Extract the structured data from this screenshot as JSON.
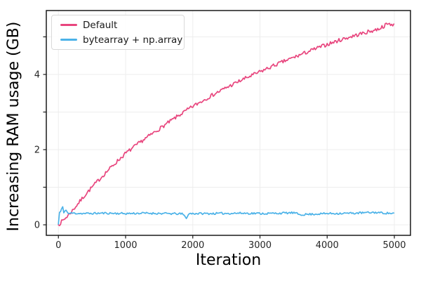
{
  "figure": {
    "background": "#ffffff",
    "spine_color": "#1a1a1a",
    "grid_color": "#ededed",
    "tick_label_color": "#262626"
  },
  "legend": {
    "position": "upper left",
    "items": [
      {
        "label": "Default",
        "color": "#e8467e"
      },
      {
        "label": "bytearray + np.array",
        "color": "#4bb2e8"
      }
    ]
  },
  "chart_data": {
    "type": "line",
    "title": "",
    "xlabel": "Iteration",
    "ylabel": "Increasing RAM usage (GB)",
    "xlim": [
      -180,
      5240
    ],
    "ylim": [
      -0.28,
      5.7
    ],
    "x_ticks": [
      0,
      1000,
      2000,
      3000,
      4000,
      5000
    ],
    "y_ticks_all": [
      0,
      1,
      2,
      3,
      4,
      5
    ],
    "y_ticks_labeled": [
      0,
      2,
      4
    ],
    "grid": true,
    "legend_position": "upper left",
    "series": [
      {
        "name": "Default",
        "color": "#e8467e",
        "noise_amplitude": 0.05,
        "seed": 7,
        "anchors": [
          [
            0,
            0.0
          ],
          [
            100,
            0.17
          ],
          [
            200,
            0.36
          ],
          [
            300,
            0.58
          ],
          [
            400,
            0.8
          ],
          [
            500,
            1.0
          ],
          [
            625,
            1.24
          ],
          [
            750,
            1.47
          ],
          [
            875,
            1.69
          ],
          [
            1000,
            1.9
          ],
          [
            1250,
            2.24
          ],
          [
            1500,
            2.55
          ],
          [
            1750,
            2.86
          ],
          [
            2000,
            3.15
          ],
          [
            2250,
            3.41
          ],
          [
            2500,
            3.65
          ],
          [
            2750,
            3.87
          ],
          [
            3000,
            4.07
          ],
          [
            3250,
            4.27
          ],
          [
            3500,
            4.45
          ],
          [
            3750,
            4.63
          ],
          [
            4000,
            4.8
          ],
          [
            4250,
            4.95
          ],
          [
            4500,
            5.08
          ],
          [
            4750,
            5.2
          ],
          [
            4900,
            5.34
          ],
          [
            5000,
            5.33
          ]
        ]
      },
      {
        "name": "bytearray + np.array",
        "color": "#4bb2e8",
        "noise_amplitude": 0.026,
        "seed": 11,
        "anchors": [
          [
            0,
            0.02
          ],
          [
            15,
            0.33
          ],
          [
            40,
            0.36
          ],
          [
            60,
            0.52
          ],
          [
            80,
            0.3
          ],
          [
            110,
            0.42
          ],
          [
            140,
            0.3
          ],
          [
            200,
            0.31
          ],
          [
            400,
            0.3
          ],
          [
            700,
            0.31
          ],
          [
            1000,
            0.3
          ],
          [
            1300,
            0.31
          ],
          [
            1600,
            0.3
          ],
          [
            1850,
            0.29
          ],
          [
            1900,
            0.18
          ],
          [
            1950,
            0.3
          ],
          [
            2300,
            0.3
          ],
          [
            2700,
            0.31
          ],
          [
            3100,
            0.3
          ],
          [
            3500,
            0.32
          ],
          [
            3600,
            0.27
          ],
          [
            4000,
            0.3
          ],
          [
            4400,
            0.31
          ],
          [
            4700,
            0.33
          ],
          [
            5000,
            0.3
          ]
        ]
      }
    ]
  }
}
